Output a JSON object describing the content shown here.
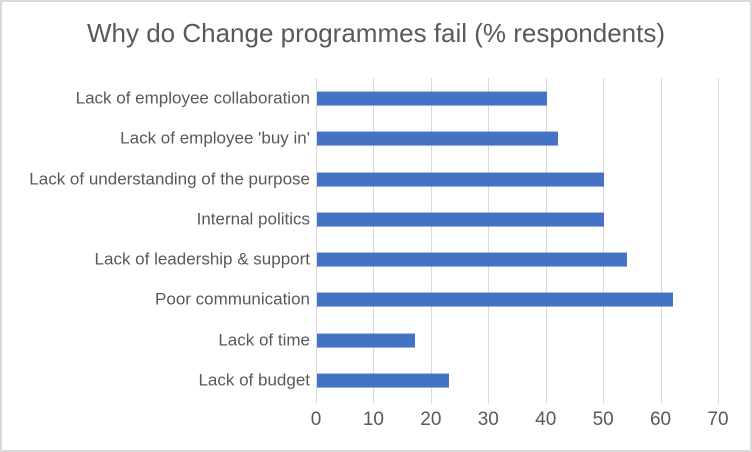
{
  "window": {
    "background_color": "#FFFFFF",
    "border_color": "#D9D9D9"
  },
  "chart_data": {
    "type": "bar",
    "orientation": "horizontal",
    "title": "Why do Change programmes fail (% respondents)",
    "categories": [
      "Lack of employee collaboration",
      "Lack of employee 'buy in'",
      "Lack of understanding of the purpose",
      "Internal politics",
      "Lack of leadership & support",
      "Poor communication",
      "Lack of time",
      "Lack of budget"
    ],
    "values": [
      40,
      42,
      50,
      50,
      54,
      62,
      17,
      23
    ],
    "xlabel": "",
    "ylabel": "",
    "xlim": [
      0,
      70
    ],
    "xticks": [
      0,
      10,
      20,
      30,
      40,
      50,
      60,
      70
    ],
    "grid": true,
    "legend": false,
    "bar_color": "#4472C4",
    "gridline_color": "#D9D9D9",
    "text_color": "#595959"
  }
}
